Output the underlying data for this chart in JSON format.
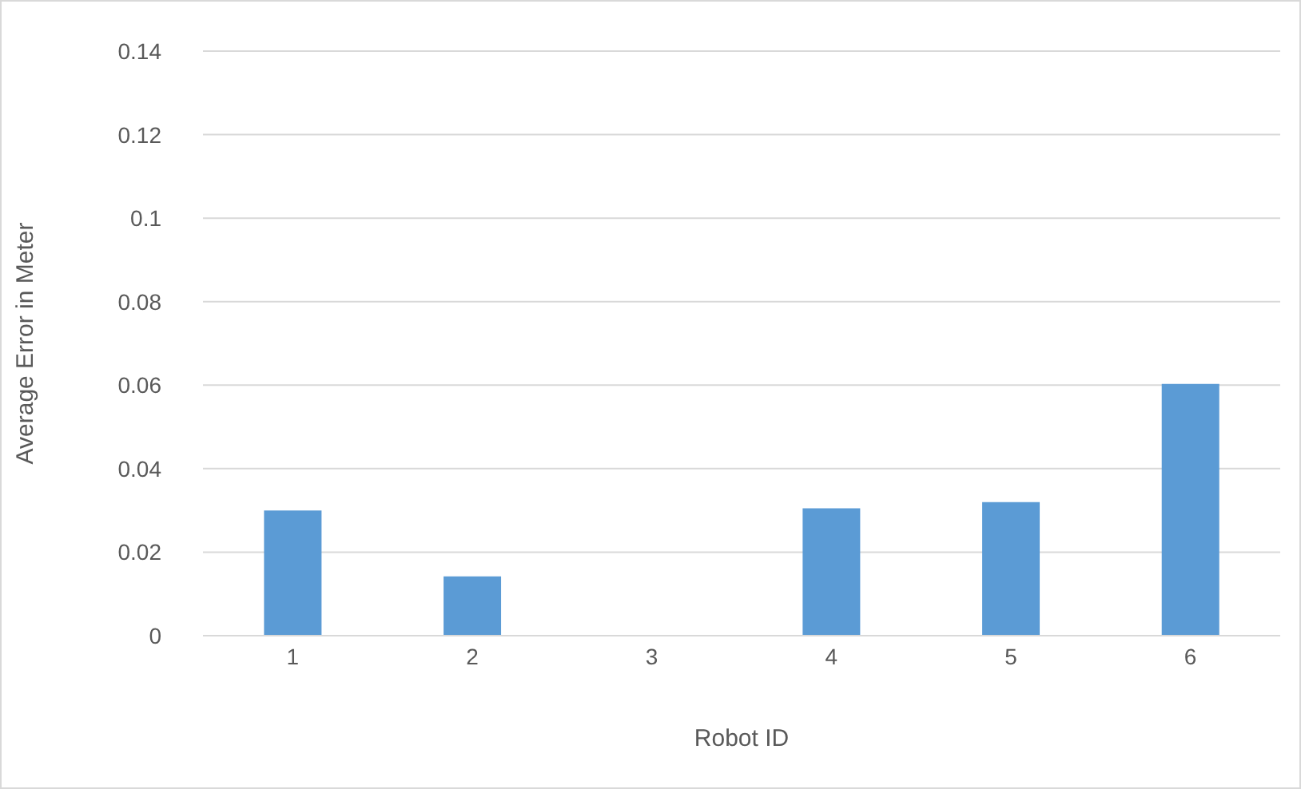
{
  "chart_data": {
    "type": "bar",
    "xlabel": "Robot ID",
    "ylabel": "Average Error in Meter",
    "categories": [
      "1",
      "2",
      "3",
      "4",
      "5",
      "6"
    ],
    "values": [
      0.03,
      0.0142,
      0,
      0.0305,
      0.032,
      0.0603
    ],
    "color": "#5b9bd5",
    "ylim": [
      0,
      0.14
    ],
    "yticks": [
      0,
      0.02,
      0.04,
      0.06,
      0.08,
      0.1,
      0.12,
      0.14
    ],
    "grid": "y",
    "legend": false
  }
}
